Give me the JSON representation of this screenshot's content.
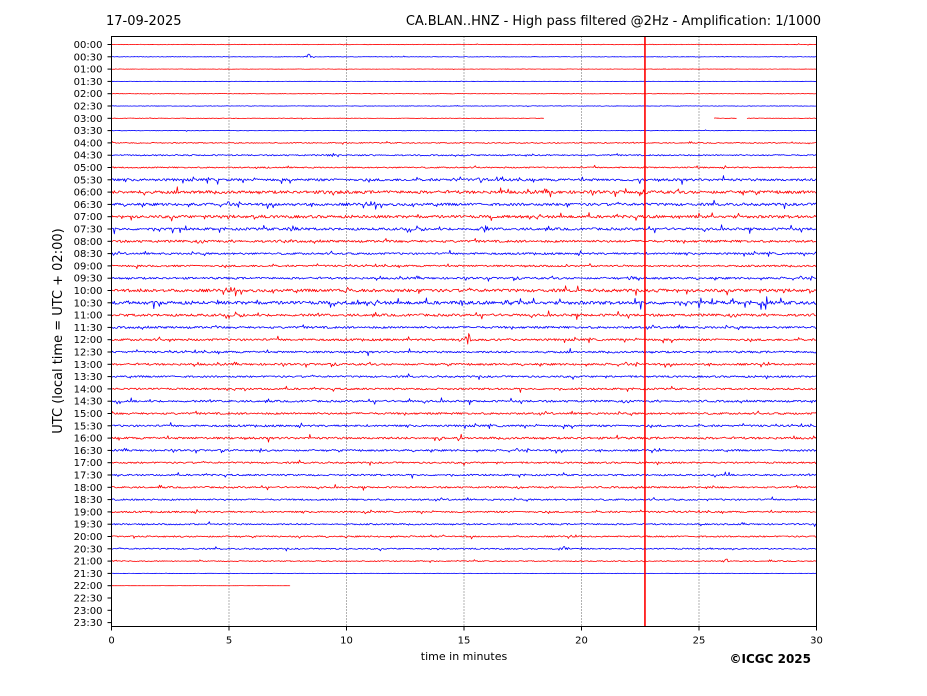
{
  "header": {
    "date": "17-09-2025",
    "title": "CA.BLAN..HNZ - High pass filtered @2Hz - Amplification: 1/1000"
  },
  "copyright": "©ICGC 2025",
  "colors": {
    "red": "#ff0000",
    "blue": "#0000ff",
    "grid": "#000000"
  },
  "chart_data": {
    "type": "line",
    "subtype": "helicorder",
    "xlabel": "time in minutes",
    "ylabel": "UTC (local time = UTC + 02:00)",
    "xlim": [
      0,
      30
    ],
    "xticks": [
      0,
      5,
      10,
      15,
      20,
      25,
      30
    ],
    "grid_x": true,
    "rows": [
      "00:00",
      "00:30",
      "01:00",
      "01:30",
      "02:00",
      "02:30",
      "03:00",
      "03:30",
      "04:00",
      "04:30",
      "05:00",
      "05:30",
      "06:00",
      "06:30",
      "07:00",
      "07:30",
      "08:00",
      "08:30",
      "09:00",
      "09:30",
      "10:00",
      "10:30",
      "11:00",
      "11:30",
      "12:00",
      "12:30",
      "13:00",
      "13:30",
      "14:00",
      "14:30",
      "15:00",
      "15:30",
      "16:00",
      "16:30",
      "17:00",
      "17:30",
      "18:00",
      "18:30",
      "19:00",
      "19:30",
      "20:00",
      "20:30",
      "21:00",
      "21:30",
      "22:00",
      "22:30",
      "23:00",
      "23:30"
    ],
    "row_colors": [
      "red",
      "blue"
    ],
    "noise_level": [
      0.3,
      0.3,
      0.2,
      0.2,
      0.3,
      0.3,
      0.3,
      0.3,
      0.6,
      0.8,
      0.8,
      1.5,
      1.8,
      1.6,
      1.7,
      1.5,
      1.4,
      1.2,
      1.1,
      1.2,
      1.8,
      2.0,
      1.5,
      1.3,
      1.3,
      1.2,
      1.2,
      1.1,
      1.1,
      1.2,
      1.2,
      1.2,
      1.3,
      1.1,
      1.0,
      1.0,
      1.0,
      1.0,
      1.0,
      0.9,
      0.9,
      0.8,
      0.6,
      0.2,
      0.1,
      0,
      0,
      0
    ],
    "row_end_minutes": [
      30,
      30,
      30,
      30,
      30,
      30,
      30,
      30,
      30,
      30,
      30,
      30,
      30,
      30,
      30,
      30,
      30,
      30,
      30,
      30,
      30,
      30,
      30,
      30,
      30,
      30,
      30,
      30,
      30,
      30,
      30,
      30,
      30,
      30,
      30,
      30,
      30,
      30,
      30,
      30,
      30,
      30,
      30,
      30,
      7.6,
      0,
      0,
      0
    ],
    "gaps": [
      {
        "row": "03:00",
        "from": 18.4,
        "to": 25.6
      },
      {
        "row": "03:00",
        "from": 26.6,
        "to": 27.0
      }
    ],
    "events": [
      {
        "row": "00:30",
        "minute": 8.4,
        "amplitude": 3.5
      },
      {
        "row": "04:30",
        "minute": 9.4,
        "amplitude": 3
      },
      {
        "row": "05:30",
        "minute": 15.7,
        "amplitude": 3
      },
      {
        "row": "07:30",
        "minute": 7.8,
        "amplitude": 8
      },
      {
        "row": "07:30",
        "minute": 15.9,
        "amplitude": 5
      },
      {
        "row": "09:30",
        "minute": 22.1,
        "amplitude": 3
      },
      {
        "row": "10:00",
        "minute": 1.2,
        "amplitude": 4
      },
      {
        "row": "10:00",
        "minute": 10.0,
        "amplitude": 4
      },
      {
        "row": "10:30",
        "minute": 0.7,
        "amplitude": 4
      },
      {
        "row": "10:30",
        "minute": 14.9,
        "amplitude": 4
      },
      {
        "row": "10:30",
        "minute": 16.9,
        "amplitude": 7
      },
      {
        "row": "10:30",
        "minute": 27.8,
        "amplitude": 8
      },
      {
        "row": "12:00",
        "minute": 15.1,
        "amplitude": 12
      },
      {
        "row": "16:00",
        "minute": 13.9,
        "amplitude": 3
      },
      {
        "row": "20:30",
        "minute": 19.2,
        "amplitude": 4
      },
      {
        "row": "21:00",
        "minute": 26.2,
        "amplitude": 3
      }
    ],
    "artifact_line": {
      "minute": 22.7,
      "from_row": "00:00",
      "color": "red"
    }
  }
}
